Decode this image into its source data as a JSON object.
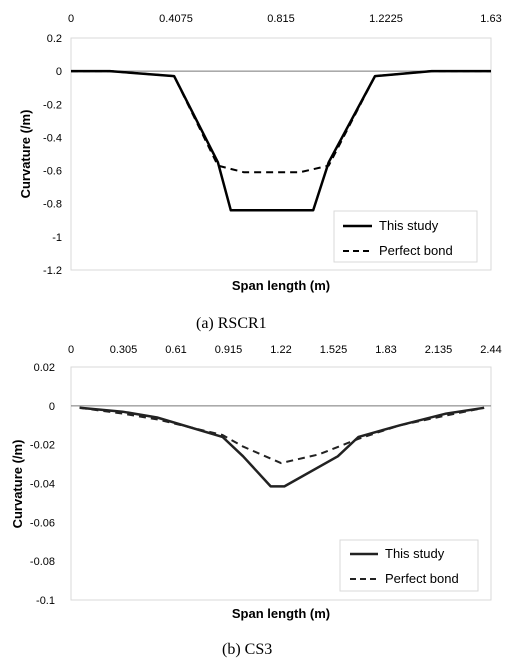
{
  "chart_data": [
    {
      "type": "line",
      "caption": "(a)  RSCR1",
      "xlabel": "Span length (m)",
      "ylabel": "Curvature (/m)",
      "xlim": [
        0,
        1.63
      ],
      "ylim": [
        -1.2,
        0.2
      ],
      "xticks": [
        "0",
        "0.4075",
        "0.815",
        "1.2225",
        "1.63"
      ],
      "xtick_values": [
        0,
        0.4075,
        0.815,
        1.2225,
        1.63
      ],
      "yticks": [
        "0.2",
        "0",
        "-0.2",
        "-0.4",
        "-0.6",
        "-0.8",
        "-1",
        "-1.2"
      ],
      "ytick_values": [
        0.2,
        0,
        -0.2,
        -0.4,
        -0.6,
        -0.8,
        -1,
        -1.2
      ],
      "legend_position": "bottom-right",
      "series": [
        {
          "name": "This study",
          "style": "solid",
          "x": [
            0,
            0.15,
            0.4,
            0.57,
            0.62,
            0.94,
            1.0,
            1.18,
            1.4,
            1.63
          ],
          "y": [
            0,
            0,
            -0.03,
            -0.55,
            -0.84,
            -0.84,
            -0.55,
            -0.03,
            0,
            0
          ]
        },
        {
          "name": "Perfect bond",
          "style": "dashed",
          "x": [
            0,
            0.15,
            0.4,
            0.57,
            0.67,
            0.89,
            1.0,
            1.18,
            1.4,
            1.63
          ],
          "y": [
            0,
            0,
            -0.03,
            -0.57,
            -0.61,
            -0.61,
            -0.57,
            -0.03,
            0,
            0
          ]
        }
      ]
    },
    {
      "type": "line",
      "caption": "(b)  CS3",
      "xlabel": "Span length (m)",
      "ylabel": "Curvature (/m)",
      "xlim": [
        0,
        2.44
      ],
      "ylim": [
        -0.1,
        0.02
      ],
      "xticks": [
        "0",
        "0.305",
        "0.61",
        "0.915",
        "1.22",
        "1.525",
        "1.83",
        "2.135",
        "2.44"
      ],
      "xtick_values": [
        0,
        0.305,
        0.61,
        0.915,
        1.22,
        1.525,
        1.83,
        2.135,
        2.44
      ],
      "yticks": [
        "0.02",
        "0",
        "-0.02",
        "-0.04",
        "-0.06",
        "-0.08",
        "-0.1"
      ],
      "ytick_values": [
        0.02,
        0,
        -0.02,
        -0.04,
        -0.06,
        -0.08,
        -0.1
      ],
      "legend_position": "bottom-right",
      "series": [
        {
          "name": "This study",
          "style": "solid",
          "x": [
            0.05,
            0.3,
            0.5,
            0.88,
            1.0,
            1.16,
            1.24,
            1.55,
            1.67,
            1.91,
            2.18,
            2.4
          ],
          "y": [
            -0.001,
            -0.003,
            -0.006,
            -0.016,
            -0.026,
            -0.0415,
            -0.0415,
            -0.026,
            -0.016,
            -0.01,
            -0.004,
            -0.001
          ],
          "color": "#222222"
        },
        {
          "name": "Perfect bond",
          "style": "dashed",
          "x": [
            0.05,
            0.3,
            0.5,
            0.88,
            1.0,
            1.22,
            1.44,
            1.67,
            1.91,
            2.18,
            2.4
          ],
          "y": [
            -0.001,
            -0.004,
            -0.007,
            -0.015,
            -0.021,
            -0.0295,
            -0.025,
            -0.017,
            -0.01,
            -0.005,
            -0.001
          ],
          "color": "#222222"
        }
      ]
    }
  ]
}
